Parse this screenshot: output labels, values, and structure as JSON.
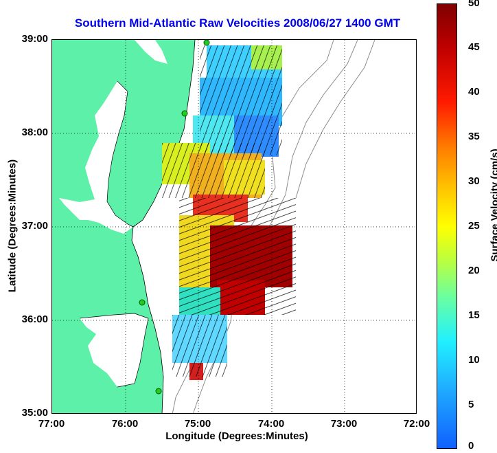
{
  "title": "Southern Mid-Atlantic Raw Velocities 2008/06/27 1400 GMT",
  "xaxis": {
    "label": "Longitude (Degrees:Minutes)",
    "ticks": [
      "77:00",
      "76:00",
      "75:00",
      "74:00",
      "73:00",
      "72:00"
    ]
  },
  "yaxis": {
    "label": "Latitude (Degrees:Minutes)",
    "ticks": [
      "39:00",
      "38:00",
      "37:00",
      "36:00",
      "35:00"
    ]
  },
  "colorbar": {
    "label": "Surface Velocity (cm/s)",
    "ticks": [
      "50",
      "45",
      "40",
      "35",
      "30",
      "25",
      "20",
      "15",
      "10",
      "5",
      "0"
    ],
    "min": 0,
    "max": 50
  },
  "colors": {
    "land": "#5cf0a8",
    "title": "#0000ee"
  },
  "map": {
    "lon_range": [
      -77,
      -72
    ],
    "lat_range": [
      35,
      39
    ],
    "grid": "dotted",
    "features": [
      "coastline",
      "bathymetry-contours",
      "radar-sites",
      "velocity-vectors"
    ]
  }
}
